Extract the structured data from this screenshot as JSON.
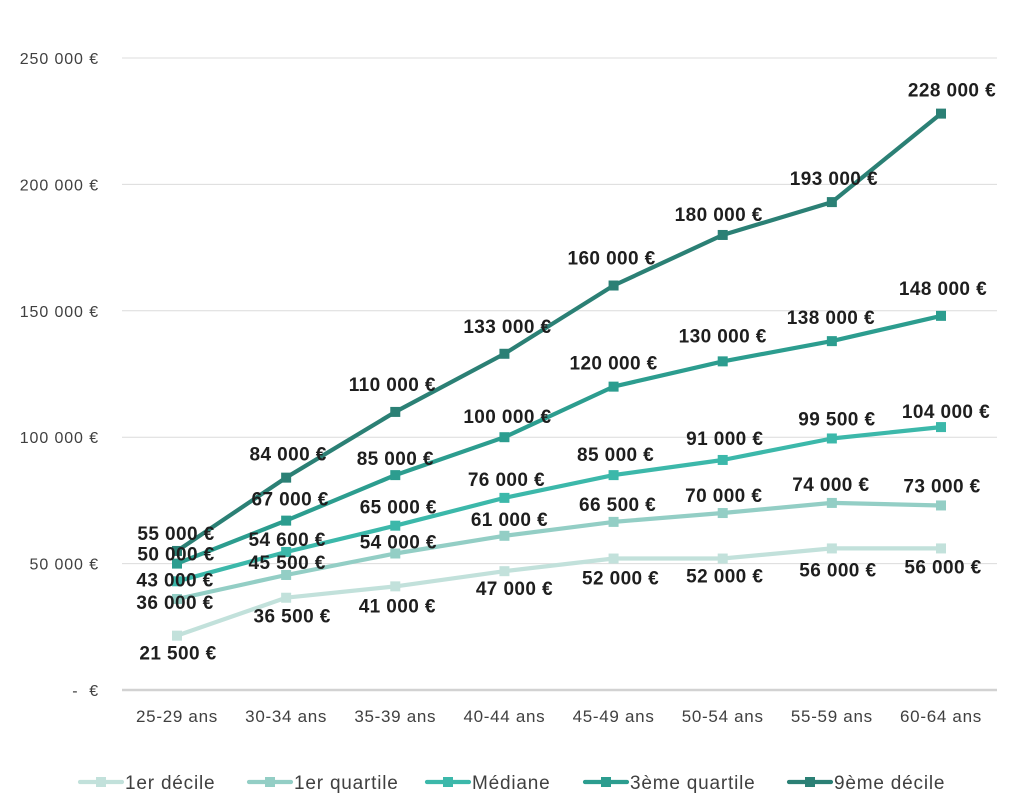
{
  "chart_data": {
    "type": "line",
    "categories": [
      "25-29 ans",
      "30-34 ans",
      "35-39 ans",
      "40-44 ans",
      "45-49 ans",
      "50-54 ans",
      "55-59 ans",
      "60-64 ans"
    ],
    "y_ticks": [
      250000,
      200000,
      150000,
      100000,
      50000,
      0
    ],
    "y_tick_labels": [
      "250 000 €",
      "200 000 €",
      "150 000 €",
      "100 000 €",
      "50 000 €",
      "-  €"
    ],
    "ylim": [
      0,
      250000
    ],
    "grid": true,
    "legend": "bottom",
    "series": [
      {
        "name": "1er décile",
        "color": "#c2e1db",
        "values": [
          21500,
          36500,
          41000,
          47000,
          52000,
          52000,
          56000,
          56000
        ],
        "labels": [
          "21 500 €",
          "36 500 €",
          "41 000 €",
          "47 000 €",
          "52 000 €",
          "52 000 €",
          "56 000 €",
          "56 000 €"
        ]
      },
      {
        "name": "1er quartile",
        "color": "#93cec5",
        "values": [
          36000,
          45500,
          54000,
          61000,
          66500,
          70000,
          74000,
          73000
        ],
        "labels": [
          "36 000 €",
          "45 500 €",
          "54 000 €",
          "61 000 €",
          "66 500 €",
          "70 000 €",
          "74 000 €",
          "73 000 €"
        ]
      },
      {
        "name": "Médiane",
        "color": "#3cb8aa",
        "values": [
          43000,
          54600,
          65000,
          76000,
          85000,
          91000,
          99500,
          104000
        ],
        "labels": [
          "43 000 €",
          "54 600 €",
          "65 000 €",
          "76 000 €",
          "85 000 €",
          "91 000 €",
          "99 500 €",
          "104 000 €"
        ]
      },
      {
        "name": "3ème quartile",
        "color": "#2c9d8f",
        "values": [
          50000,
          67000,
          85000,
          100000,
          120000,
          130000,
          138000,
          148000
        ],
        "labels": [
          "50 000 €",
          "67 000 €",
          "85 000 €",
          "100 000 €",
          "120 000 €",
          "130 000 €",
          "138 000 €",
          "148 000 €"
        ]
      },
      {
        "name": "9ème décile",
        "color": "#2b8075",
        "values": [
          55000,
          84000,
          110000,
          133000,
          160000,
          180000,
          193000,
          228000
        ],
        "labels": [
          "55 000 €",
          "84 000 €",
          "110 000 €",
          "133 000 €",
          "160 000 €",
          "180 000 €",
          "193 000 €",
          "228 000 €"
        ]
      }
    ]
  }
}
